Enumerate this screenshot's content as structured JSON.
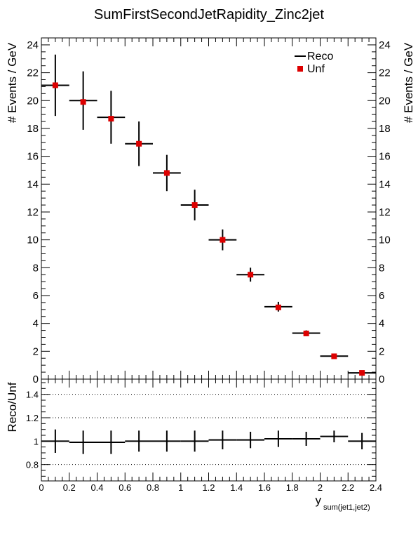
{
  "chart_data": [
    {
      "type": "scatter",
      "title": "SumFirstSecondJetRapidity_Zinc2jet",
      "ylabel": "# Events / GeV",
      "ylim": [
        0,
        24.5
      ],
      "yticks": [
        0,
        2,
        4,
        6,
        8,
        10,
        12,
        14,
        16,
        18,
        20,
        22,
        24
      ],
      "xlim": [
        0,
        2.4
      ],
      "legend": {
        "placement": "top-right",
        "entries": [
          "Reco",
          "Unf"
        ]
      },
      "bin_half_width": 0.1,
      "series": [
        {
          "name": "Reco",
          "style": "black error bars",
          "x": [
            0.1,
            0.3,
            0.5,
            0.7,
            0.9,
            1.1,
            1.3,
            1.5,
            1.7,
            1.9,
            2.1,
            2.3
          ],
          "y": [
            21.1,
            20.0,
            18.8,
            16.9,
            14.8,
            12.5,
            10.0,
            7.5,
            5.2,
            3.3,
            1.65,
            0.45
          ],
          "yerr": [
            2.2,
            2.1,
            1.9,
            1.6,
            1.3,
            1.1,
            0.75,
            0.5,
            0.35,
            0.2,
            0.1,
            0.05
          ]
        },
        {
          "name": "Unf",
          "style": "red squares",
          "x": [
            0.1,
            0.3,
            0.5,
            0.7,
            0.9,
            1.1,
            1.3,
            1.5,
            1.7,
            1.9,
            2.1,
            2.3
          ],
          "y": [
            21.1,
            19.9,
            18.7,
            16.9,
            14.8,
            12.5,
            10.0,
            7.5,
            5.15,
            3.28,
            1.64,
            0.45
          ]
        }
      ]
    },
    {
      "type": "scatter",
      "ylabel": "Reco/Unf",
      "xlabel_main": "y",
      "xlabel_sub": "sum(jet1,jet2)",
      "xlim": [
        0,
        2.4
      ],
      "xticks": [
        0,
        0.2,
        0.4,
        0.6,
        0.8,
        1,
        1.2,
        1.4,
        1.6,
        1.8,
        2,
        2.2,
        2.4
      ],
      "xtick_labels": [
        "0",
        "0.2",
        "0.4",
        "0.6",
        "0.8",
        "1",
        "1.2",
        "1.4",
        "1.6",
        "1.8",
        "2",
        "2.2",
        "2.4"
      ],
      "ylim": [
        0.66,
        1.53
      ],
      "yticks": [
        0.8,
        1,
        1.2,
        1.4
      ],
      "ytick_labels": [
        "0.8",
        "1",
        "1.2",
        "1.4"
      ],
      "grid_y": [
        0.8,
        1.2,
        1.4
      ],
      "series": [
        {
          "name": "Reco/Unf",
          "x": [
            0.1,
            0.3,
            0.5,
            0.7,
            0.9,
            1.1,
            1.3,
            1.5,
            1.7,
            1.9,
            2.1,
            2.3
          ],
          "y": [
            1.0,
            0.99,
            0.99,
            1.0,
            1.0,
            1.0,
            1.01,
            1.01,
            1.02,
            1.02,
            1.04,
            1.0
          ],
          "yerr": [
            0.1,
            0.1,
            0.1,
            0.09,
            0.09,
            0.09,
            0.08,
            0.07,
            0.07,
            0.06,
            0.05,
            0.07
          ]
        }
      ]
    }
  ],
  "colors": {
    "unf_marker": "#dd0000",
    "reco": "#000000",
    "grid": "#000000"
  }
}
